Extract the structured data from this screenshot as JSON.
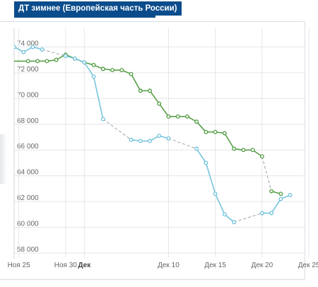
{
  "badge": {
    "title": "ДТ зимнее (Европейская часть России)"
  },
  "chart_data": {
    "type": "line",
    "title": "ДТ зимнее (Европейская часть России)",
    "xlabel": "",
    "ylabel": "",
    "ylim": [
      58000,
      74500
    ],
    "xlim": [
      -6.5,
      31.3
    ],
    "y_ticks": [
      {
        "value": 58000,
        "label": "58 000"
      },
      {
        "value": 60000,
        "label": "60 000"
      },
      {
        "value": 62000,
        "label": "62 000"
      },
      {
        "value": 64000,
        "label": "64 000"
      },
      {
        "value": 66000,
        "label": "66 000"
      },
      {
        "value": 68000,
        "label": "68 000"
      },
      {
        "value": 70000,
        "label": "70 000"
      },
      {
        "value": 72000,
        "label": "72 000"
      },
      {
        "value": 74000,
        "label": "74 000"
      }
    ],
    "x_ticks": [
      {
        "day": -6,
        "label": "Ноя 25",
        "bold": false
      },
      {
        "day": -1,
        "label": "Ноя 30",
        "bold": false
      },
      {
        "day": 1,
        "label": "Дек",
        "bold": true
      },
      {
        "day": 10,
        "label": "Дек 10",
        "bold": false
      },
      {
        "day": 15,
        "label": "Дек 15",
        "bold": false
      },
      {
        "day": 20,
        "label": "Дек 20",
        "bold": false
      },
      {
        "day": 25,
        "label": "Дек 25",
        "bold": false
      }
    ],
    "grid": true,
    "series": [
      {
        "color": "#4e9a3e",
        "points": [
          {
            "x": -7,
            "y": 72900,
            "dashed_in": false
          },
          {
            "x": -5,
            "y": 72900,
            "dashed_in": false
          },
          {
            "x": -4,
            "y": 72900,
            "dashed_in": false
          },
          {
            "x": -3,
            "y": 72900,
            "dashed_in": false
          },
          {
            "x": -2,
            "y": 73000,
            "dashed_in": false
          },
          {
            "x": -1,
            "y": 73400,
            "dashed_in": false
          },
          {
            "x": 0,
            "y": 73100,
            "dashed_in": false
          },
          {
            "x": 1,
            "y": 72800,
            "dashed_in": false
          },
          {
            "x": 2,
            "y": 72600,
            "dashed_in": false
          },
          {
            "x": 3,
            "y": 72300,
            "dashed_in": false
          },
          {
            "x": 4,
            "y": 72200,
            "dashed_in": false
          },
          {
            "x": 5,
            "y": 72200,
            "dashed_in": false
          },
          {
            "x": 6,
            "y": 71900,
            "dashed_in": false
          },
          {
            "x": 7,
            "y": 70600,
            "dashed_in": false
          },
          {
            "x": 8,
            "y": 70600,
            "dashed_in": false
          },
          {
            "x": 9,
            "y": 69600,
            "dashed_in": false
          },
          {
            "x": 10,
            "y": 68600,
            "dashed_in": false
          },
          {
            "x": 11,
            "y": 68600,
            "dashed_in": false
          },
          {
            "x": 12,
            "y": 68600,
            "dashed_in": false
          },
          {
            "x": 13,
            "y": 68200,
            "dashed_in": false
          },
          {
            "x": 14,
            "y": 67400,
            "dashed_in": false
          },
          {
            "x": 15,
            "y": 67400,
            "dashed_in": false
          },
          {
            "x": 16,
            "y": 67300,
            "dashed_in": false
          },
          {
            "x": 17,
            "y": 66100,
            "dashed_in": false
          },
          {
            "x": 18,
            "y": 66000,
            "dashed_in": false
          },
          {
            "x": 19,
            "y": 66000,
            "dashed_in": false
          },
          {
            "x": 20,
            "y": 65500,
            "dashed_in": false
          },
          {
            "x": 21,
            "y": 62800,
            "dashed_in": true
          },
          {
            "x": 22,
            "y": 62600,
            "dashed_in": false
          }
        ]
      },
      {
        "color": "#6ec1dc",
        "points": [
          {
            "x": -6.5,
            "y": 74000,
            "dashed_in": false
          },
          {
            "x": -5.5,
            "y": 73600,
            "dashed_in": false
          },
          {
            "x": -4.5,
            "y": 74000,
            "dashed_in": false
          },
          {
            "x": -3.5,
            "y": 73800,
            "dashed_in": false
          },
          {
            "x": -1,
            "y": 73300,
            "dashed_in": true
          },
          {
            "x": 0,
            "y": 73100,
            "dashed_in": false
          },
          {
            "x": 1,
            "y": 72800,
            "dashed_in": false
          },
          {
            "x": 2,
            "y": 71700,
            "dashed_in": false
          },
          {
            "x": 3,
            "y": 68400,
            "dashed_in": false
          },
          {
            "x": 6,
            "y": 66800,
            "dashed_in": true
          },
          {
            "x": 7,
            "y": 66700,
            "dashed_in": false
          },
          {
            "x": 8,
            "y": 66700,
            "dashed_in": false
          },
          {
            "x": 9,
            "y": 67100,
            "dashed_in": false
          },
          {
            "x": 10,
            "y": 66900,
            "dashed_in": false
          },
          {
            "x": 13,
            "y": 66100,
            "dashed_in": true
          },
          {
            "x": 14,
            "y": 65000,
            "dashed_in": false
          },
          {
            "x": 15,
            "y": 62600,
            "dashed_in": false
          },
          {
            "x": 16,
            "y": 61000,
            "dashed_in": false
          },
          {
            "x": 17,
            "y": 60400,
            "dashed_in": false
          },
          {
            "x": 20,
            "y": 61100,
            "dashed_in": true
          },
          {
            "x": 21,
            "y": 61100,
            "dashed_in": false
          },
          {
            "x": 22,
            "y": 62200,
            "dashed_in": false
          },
          {
            "x": 23,
            "y": 62500,
            "dashed_in": false
          }
        ]
      }
    ]
  }
}
